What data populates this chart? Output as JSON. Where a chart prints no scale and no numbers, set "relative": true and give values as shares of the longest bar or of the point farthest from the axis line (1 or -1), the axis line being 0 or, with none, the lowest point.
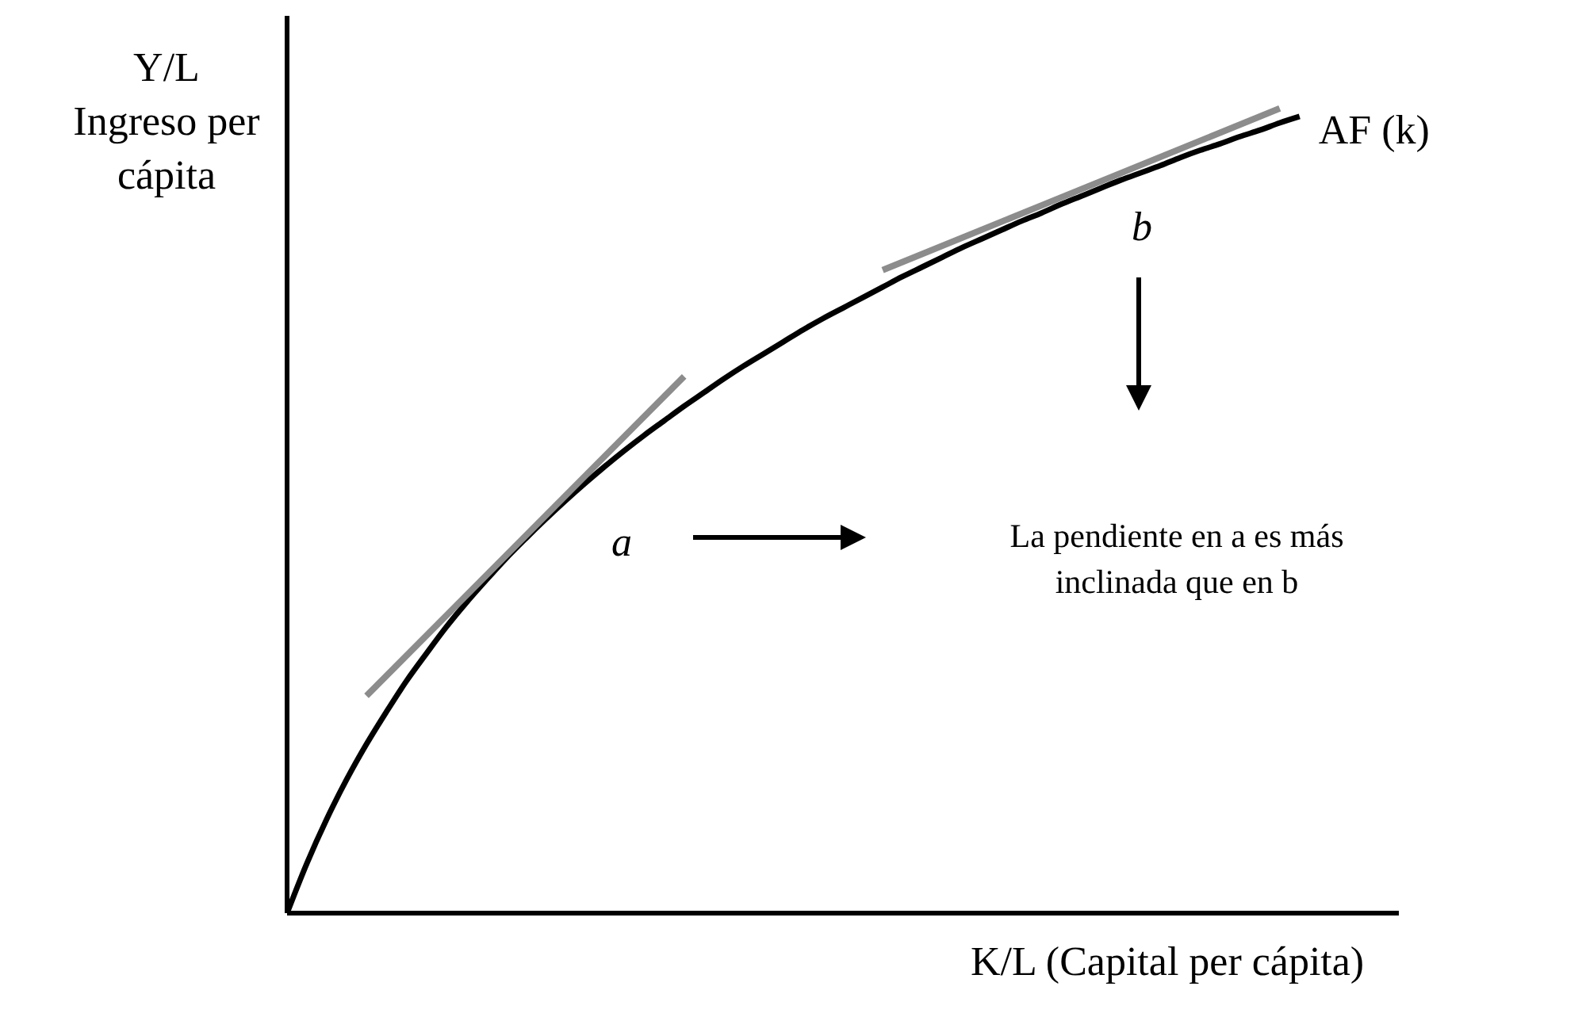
{
  "chart_data": {
    "type": "line",
    "relative": true,
    "xlabel": "K/L (Capital per cápita)",
    "ylabel": "Y/L\nIngreso per cápita",
    "categories": [
      null,
      null,
      null,
      null,
      null,
      null,
      null,
      null,
      null,
      null,
      null,
      null,
      null,
      null,
      null,
      null,
      null,
      null,
      null,
      null,
      null,
      null,
      null,
      null,
      null,
      null,
      null,
      null,
      null,
      null,
      null,
      null,
      null,
      null,
      null,
      null,
      null,
      null,
      null,
      null,
      null,
      null,
      null,
      null,
      null,
      null,
      null,
      null,
      null,
      null,
      null,
      null,
      null,
      null,
      null,
      null,
      null
    ],
    "series": [
      {
        "name": "AF (k)",
        "color": "#000000",
        "values": [
          0,
          0.062,
          0.117,
          0.166,
          0.21,
          0.25,
          0.288,
          0.322,
          0.355,
          0.385,
          0.413,
          0.44,
          0.465,
          0.489,
          0.512,
          0.534,
          0.555,
          0.575,
          0.594,
          0.612,
          0.63,
          0.647,
          0.664,
          0.68,
          0.695,
          0.71,
          0.725,
          0.739,
          0.752,
          0.765,
          0.778,
          0.791,
          0.803,
          0.815,
          0.827,
          0.838,
          0.849,
          0.86,
          0.87,
          0.881,
          0.891,
          0.901,
          0.911,
          0.92,
          0.929,
          0.939,
          0.948,
          0.956,
          0.965,
          0.973,
          0.982,
          0.99,
          null,
          null,
          null,
          null,
          null
        ]
      },
      {
        "color": "#8c8c8c",
        "values": [
          null,
          null,
          null,
          null,
          0.27,
          null,
          null,
          null,
          null,
          null,
          null,
          null,
          null,
          null,
          null,
          null,
          null,
          null,
          null,
          null,
          0.667,
          null,
          null,
          null,
          null,
          null,
          null,
          null,
          null,
          null,
          null,
          null,
          null,
          null,
          null,
          null,
          null,
          null,
          null,
          null,
          null,
          null,
          null,
          null,
          null,
          null,
          null,
          null,
          null,
          null,
          null,
          null,
          null,
          null,
          null,
          null,
          null
        ]
      },
      {
        "color": "#8c8c8c",
        "values": [
          null,
          null,
          null,
          null,
          null,
          null,
          null,
          null,
          null,
          null,
          null,
          null,
          null,
          null,
          null,
          null,
          null,
          null,
          null,
          null,
          null,
          null,
          null,
          null,
          null,
          null,
          null,
          null,
          null,
          null,
          0.799,
          null,
          null,
          null,
          null,
          null,
          null,
          null,
          null,
          null,
          null,
          null,
          null,
          null,
          null,
          null,
          null,
          null,
          null,
          null,
          1,
          null,
          null,
          null,
          null,
          null,
          null
        ]
      }
    ],
    "annotations": [
      "a",
      "b",
      "La pendiente en a es más inclinada que en b"
    ],
    "marker": "none",
    "line_style": "solid"
  }
}
